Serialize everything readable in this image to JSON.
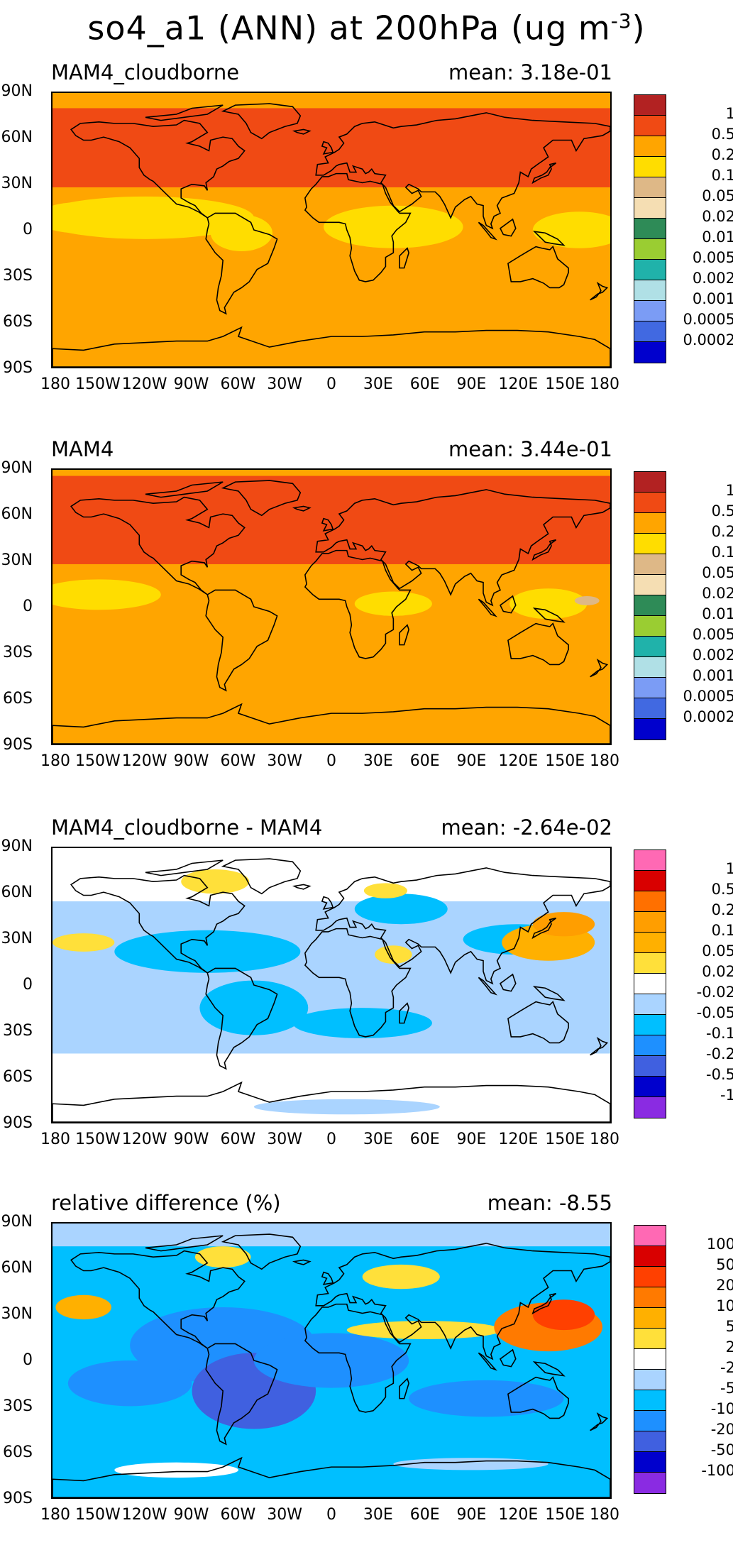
{
  "figure": {
    "title": "so4_a1 (ANN) at 200hPa (ug m",
    "title_exp": "-3"
  },
  "axes": {
    "lat_labels": [
      "90N",
      "60N",
      "30N",
      "0",
      "30S",
      "60S",
      "90S"
    ],
    "lon_labels": [
      "180",
      "150W",
      "120W",
      "90W",
      "60W",
      "30W",
      "0",
      "30E",
      "60E",
      "90E",
      "120E",
      "150E",
      "180"
    ]
  },
  "panels": [
    {
      "name": "MAM4_cloudborne",
      "mean": "mean: 3.18e-01",
      "colorbar_labels": [
        "1",
        "0.5",
        "0.2",
        "0.1",
        "0.05",
        "0.02",
        "0.01",
        "0.005",
        "0.002",
        "0.001",
        "0.0005",
        "0.0002"
      ],
      "colorbar_colors": [
        "#b22222",
        "#f04a14",
        "#ffa500",
        "#ffdd00",
        "#deb887",
        "#f5deb3",
        "#2e8b57",
        "#9acd32",
        "#20b2aa",
        "#b0e0e6",
        "#7b9cf5",
        "#4169e1",
        "#0000cd"
      ]
    },
    {
      "name": "MAM4",
      "mean": "mean: 3.44e-01",
      "colorbar_labels": [
        "1",
        "0.5",
        "0.2",
        "0.1",
        "0.05",
        "0.02",
        "0.01",
        "0.005",
        "0.002",
        "0.001",
        "0.0005",
        "0.0002"
      ],
      "colorbar_colors": [
        "#b22222",
        "#f04a14",
        "#ffa500",
        "#ffdd00",
        "#deb887",
        "#f5deb3",
        "#2e8b57",
        "#9acd32",
        "#20b2aa",
        "#b0e0e6",
        "#7b9cf5",
        "#4169e1",
        "#0000cd"
      ]
    },
    {
      "name": "MAM4_cloudborne - MAM4",
      "mean": "mean: -2.64e-02",
      "colorbar_labels": [
        "1",
        "0.5",
        "0.2",
        "0.1",
        "0.05",
        "0.02",
        "-0.02",
        "-0.05",
        "-0.1",
        "-0.2",
        "-0.5",
        "-1"
      ],
      "colorbar_colors": [
        "#ff69b4",
        "#d90000",
        "#ff7000",
        "#ff9e00",
        "#ffb000",
        "#ffe03a",
        "#ffffff",
        "#aad4ff",
        "#00bfff",
        "#1e90ff",
        "#4060e0",
        "#0000cd",
        "#8a2be2"
      ]
    },
    {
      "name": "relative difference (%)",
      "mean": "mean: -8.55",
      "colorbar_labels": [
        "100",
        "50",
        "20",
        "10",
        "5",
        "2",
        "-2",
        "-5",
        "-10",
        "-20",
        "-50",
        "-100"
      ],
      "colorbar_colors": [
        "#ff69b4",
        "#d90000",
        "#ff4000",
        "#ff7a00",
        "#ffb000",
        "#ffe03a",
        "#ffffff",
        "#aad4ff",
        "#00bfff",
        "#1e90ff",
        "#4060e0",
        "#0000cd",
        "#8a2be2"
      ]
    }
  ]
}
